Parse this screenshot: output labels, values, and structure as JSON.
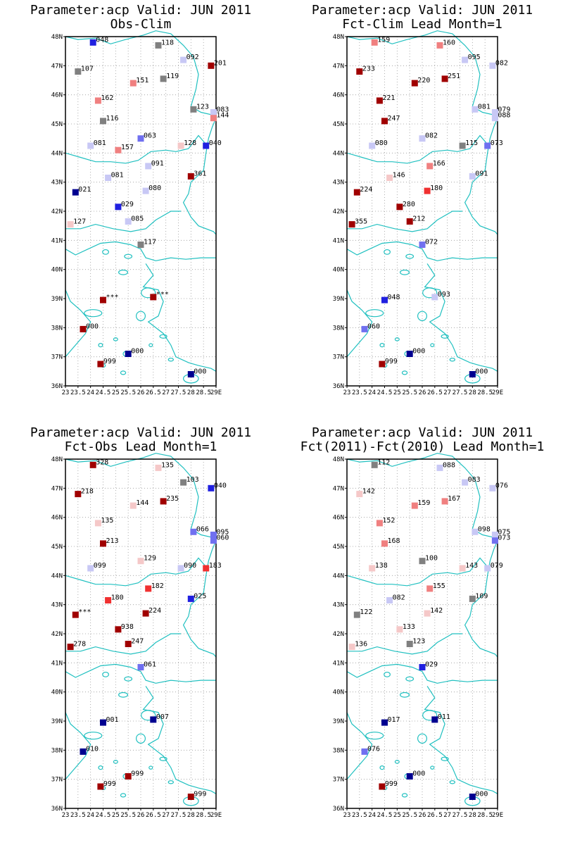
{
  "colors": {
    "coast": "#20c0c0",
    "grid": "#9a9a9a",
    "frame": "#000000",
    "dark_red": "#a00000",
    "red": "#f03030",
    "pink": "#f08080",
    "light_pink": "#f5c8c8",
    "gray": "#808080",
    "light_blue": "#c8c8f5",
    "blue_med": "#7070f0",
    "blue": "#2020e0",
    "dark_blue": "#000090"
  },
  "axes": {
    "lat_labels": [
      "36N",
      "37N",
      "38N",
      "39N",
      "40N",
      "41N",
      "42N",
      "43N",
      "44N",
      "45N",
      "46N",
      "47N",
      "48N"
    ],
    "lon_labels": [
      "23",
      "23.5",
      "24",
      "24.5",
      "25",
      "25.5",
      "26",
      "26.5",
      "27",
      "27.5",
      "28",
      "28.5",
      "29E"
    ]
  },
  "panels": [
    {
      "title_line1": "Parameter:acp Valid: JUN 2011",
      "title_line2": "Obs-Clim",
      "stations": [
        {
          "lon": 24.1,
          "lat": 47.8,
          "label": "048",
          "color": "blue"
        },
        {
          "lon": 26.7,
          "lat": 47.7,
          "label": "118",
          "color": "gray"
        },
        {
          "lon": 27.7,
          "lat": 47.2,
          "label": "092",
          "color": "light_blue"
        },
        {
          "lon": 28.8,
          "lat": 47.0,
          "label": "201",
          "color": "dark_red"
        },
        {
          "lon": 23.5,
          "lat": 46.8,
          "label": "107",
          "color": "gray"
        },
        {
          "lon": 25.7,
          "lat": 46.4,
          "label": "151",
          "color": "pink"
        },
        {
          "lon": 26.9,
          "lat": 46.55,
          "label": "119",
          "color": "gray"
        },
        {
          "lon": 24.3,
          "lat": 45.8,
          "label": "162",
          "color": "pink"
        },
        {
          "lon": 28.1,
          "lat": 45.5,
          "label": "123",
          "color": "gray"
        },
        {
          "lon": 28.9,
          "lat": 45.4,
          "label": "083",
          "color": "light_blue"
        },
        {
          "lon": 28.9,
          "lat": 45.2,
          "label": "144",
          "color": "pink"
        },
        {
          "lon": 24.5,
          "lat": 45.1,
          "label": "116",
          "color": "gray"
        },
        {
          "lon": 26.0,
          "lat": 44.5,
          "label": "063",
          "color": "blue_med"
        },
        {
          "lon": 24.0,
          "lat": 44.25,
          "label": "081",
          "color": "light_blue"
        },
        {
          "lon": 25.1,
          "lat": 44.1,
          "label": "157",
          "color": "pink"
        },
        {
          "lon": 27.6,
          "lat": 44.25,
          "label": "128",
          "color": "light_pink"
        },
        {
          "lon": 28.6,
          "lat": 44.25,
          "label": "040",
          "color": "blue"
        },
        {
          "lon": 26.3,
          "lat": 43.55,
          "label": "091",
          "color": "light_blue"
        },
        {
          "lon": 24.7,
          "lat": 43.15,
          "label": "081",
          "color": "light_blue"
        },
        {
          "lon": 28.0,
          "lat": 43.2,
          "label": "361",
          "color": "dark_red"
        },
        {
          "lon": 23.4,
          "lat": 42.65,
          "label": "021",
          "color": "dark_blue"
        },
        {
          "lon": 26.2,
          "lat": 42.7,
          "label": "080",
          "color": "light_blue"
        },
        {
          "lon": 25.1,
          "lat": 42.15,
          "label": "029",
          "color": "blue"
        },
        {
          "lon": 25.5,
          "lat": 41.65,
          "label": "085",
          "color": "light_blue"
        },
        {
          "lon": 23.2,
          "lat": 41.55,
          "label": "127",
          "color": "light_pink"
        },
        {
          "lon": 26.0,
          "lat": 40.85,
          "label": "117",
          "color": "gray"
        },
        {
          "lon": 24.5,
          "lat": 38.95,
          "label": "***",
          "color": "dark_red"
        },
        {
          "lon": 26.5,
          "lat": 39.05,
          "label": "***",
          "color": "dark_red"
        },
        {
          "lon": 23.7,
          "lat": 37.95,
          "label": "000",
          "color": "dark_red"
        },
        {
          "lon": 25.5,
          "lat": 37.1,
          "label": "000",
          "color": "dark_blue"
        },
        {
          "lon": 24.4,
          "lat": 36.75,
          "label": "999",
          "color": "dark_red"
        },
        {
          "lon": 28.0,
          "lat": 36.4,
          "label": "000",
          "color": "dark_blue"
        }
      ]
    },
    {
      "title_line1": "Parameter:acp Valid: JUN 2011",
      "title_line2": "Fct-Clim Lead Month=1",
      "stations": [
        {
          "lon": 24.1,
          "lat": 47.8,
          "label": "159",
          "color": "pink"
        },
        {
          "lon": 26.7,
          "lat": 47.7,
          "label": "160",
          "color": "pink"
        },
        {
          "lon": 27.7,
          "lat": 47.2,
          "label": "095",
          "color": "light_blue"
        },
        {
          "lon": 28.8,
          "lat": 47.0,
          "label": "082",
          "color": "light_blue"
        },
        {
          "lon": 23.5,
          "lat": 46.8,
          "label": "233",
          "color": "dark_red"
        },
        {
          "lon": 25.7,
          "lat": 46.4,
          "label": "220",
          "color": "dark_red"
        },
        {
          "lon": 26.9,
          "lat": 46.55,
          "label": "251",
          "color": "dark_red"
        },
        {
          "lon": 24.3,
          "lat": 45.8,
          "label": "221",
          "color": "dark_red"
        },
        {
          "lon": 28.1,
          "lat": 45.5,
          "label": "081",
          "color": "light_blue"
        },
        {
          "lon": 28.9,
          "lat": 45.4,
          "label": "079",
          "color": "light_blue"
        },
        {
          "lon": 28.9,
          "lat": 45.2,
          "label": "088",
          "color": "light_blue"
        },
        {
          "lon": 24.5,
          "lat": 45.1,
          "label": "247",
          "color": "dark_red"
        },
        {
          "lon": 26.0,
          "lat": 44.5,
          "label": "082",
          "color": "light_blue"
        },
        {
          "lon": 24.0,
          "lat": 44.25,
          "label": "080",
          "color": "light_blue"
        },
        {
          "lon": 27.6,
          "lat": 44.25,
          "label": "115",
          "color": "gray"
        },
        {
          "lon": 28.6,
          "lat": 44.25,
          "label": "073",
          "color": "blue_med"
        },
        {
          "lon": 26.3,
          "lat": 43.55,
          "label": "166",
          "color": "pink"
        },
        {
          "lon": 24.7,
          "lat": 43.15,
          "label": "146",
          "color": "light_pink"
        },
        {
          "lon": 28.0,
          "lat": 43.2,
          "label": "091",
          "color": "light_blue"
        },
        {
          "lon": 23.4,
          "lat": 42.65,
          "label": "224",
          "color": "dark_red"
        },
        {
          "lon": 26.2,
          "lat": 42.7,
          "label": "180",
          "color": "red"
        },
        {
          "lon": 25.1,
          "lat": 42.15,
          "label": "280",
          "color": "dark_red"
        },
        {
          "lon": 25.5,
          "lat": 41.65,
          "label": "212",
          "color": "dark_red"
        },
        {
          "lon": 23.2,
          "lat": 41.55,
          "label": "355",
          "color": "dark_red"
        },
        {
          "lon": 26.0,
          "lat": 40.85,
          "label": "072",
          "color": "blue_med"
        },
        {
          "lon": 24.5,
          "lat": 38.95,
          "label": "048",
          "color": "blue"
        },
        {
          "lon": 26.5,
          "lat": 39.05,
          "label": "093",
          "color": "light_blue"
        },
        {
          "lon": 23.7,
          "lat": 37.95,
          "label": "060",
          "color": "blue_med"
        },
        {
          "lon": 25.5,
          "lat": 37.1,
          "label": "000",
          "color": "dark_blue"
        },
        {
          "lon": 24.4,
          "lat": 36.75,
          "label": "999",
          "color": "dark_red"
        },
        {
          "lon": 28.0,
          "lat": 36.4,
          "label": "000",
          "color": "dark_blue"
        }
      ]
    },
    {
      "title_line1": "Parameter:acp Valid: JUN 2011",
      "title_line2": "Fct-Obs Lead Month=1",
      "stations": [
        {
          "lon": 24.1,
          "lat": 47.8,
          "label": "328",
          "color": "dark_red"
        },
        {
          "lon": 26.7,
          "lat": 47.7,
          "label": "135",
          "color": "light_pink"
        },
        {
          "lon": 27.7,
          "lat": 47.2,
          "label": "103",
          "color": "gray"
        },
        {
          "lon": 28.8,
          "lat": 47.0,
          "label": "040",
          "color": "blue"
        },
        {
          "lon": 23.5,
          "lat": 46.8,
          "label": "218",
          "color": "dark_red"
        },
        {
          "lon": 25.7,
          "lat": 46.4,
          "label": "144",
          "color": "light_pink"
        },
        {
          "lon": 26.9,
          "lat": 46.55,
          "label": "235",
          "color": "dark_red"
        },
        {
          "lon": 24.3,
          "lat": 45.8,
          "label": "135",
          "color": "light_pink"
        },
        {
          "lon": 28.1,
          "lat": 45.5,
          "label": "066",
          "color": "blue_med"
        },
        {
          "lon": 28.9,
          "lat": 45.4,
          "label": "095",
          "color": "blue_med"
        },
        {
          "lon": 28.9,
          "lat": 45.2,
          "label": "060",
          "color": "blue_med"
        },
        {
          "lon": 24.5,
          "lat": 45.1,
          "label": "213",
          "color": "dark_red"
        },
        {
          "lon": 26.0,
          "lat": 44.5,
          "label": "129",
          "color": "light_pink"
        },
        {
          "lon": 24.0,
          "lat": 44.25,
          "label": "099",
          "color": "light_blue"
        },
        {
          "lon": 27.6,
          "lat": 44.25,
          "label": "090",
          "color": "light_blue"
        },
        {
          "lon": 28.6,
          "lat": 44.25,
          "label": "183",
          "color": "red"
        },
        {
          "lon": 26.3,
          "lat": 43.55,
          "label": "182",
          "color": "red"
        },
        {
          "lon": 24.7,
          "lat": 43.15,
          "label": "180",
          "color": "red"
        },
        {
          "lon": 28.0,
          "lat": 43.2,
          "label": "025",
          "color": "blue"
        },
        {
          "lon": 23.4,
          "lat": 42.65,
          "label": "***",
          "color": "dark_red"
        },
        {
          "lon": 26.2,
          "lat": 42.7,
          "label": "224",
          "color": "dark_red"
        },
        {
          "lon": 25.1,
          "lat": 42.15,
          "label": "938",
          "color": "dark_red"
        },
        {
          "lon": 25.5,
          "lat": 41.65,
          "label": "247",
          "color": "dark_red"
        },
        {
          "lon": 23.2,
          "lat": 41.55,
          "label": "278",
          "color": "dark_red"
        },
        {
          "lon": 26.0,
          "lat": 40.85,
          "label": "061",
          "color": "blue_med"
        },
        {
          "lon": 24.5,
          "lat": 38.95,
          "label": "001",
          "color": "dark_blue"
        },
        {
          "lon": 26.5,
          "lat": 39.05,
          "label": "007",
          "color": "dark_blue"
        },
        {
          "lon": 23.7,
          "lat": 37.95,
          "label": "010",
          "color": "dark_blue"
        },
        {
          "lon": 25.5,
          "lat": 37.1,
          "label": "999",
          "color": "dark_red"
        },
        {
          "lon": 24.4,
          "lat": 36.75,
          "label": "999",
          "color": "dark_red"
        },
        {
          "lon": 28.0,
          "lat": 36.4,
          "label": "999",
          "color": "dark_red"
        }
      ]
    },
    {
      "title_line1": "Parameter:acp Valid: JUN 2011",
      "title_line2": "Fct(2011)-Fct(2010) Lead Month=1",
      "stations": [
        {
          "lon": 24.1,
          "lat": 47.8,
          "label": "112",
          "color": "gray"
        },
        {
          "lon": 26.7,
          "lat": 47.7,
          "label": "088",
          "color": "light_blue"
        },
        {
          "lon": 27.7,
          "lat": 47.2,
          "label": "083",
          "color": "light_blue"
        },
        {
          "lon": 28.8,
          "lat": 47.0,
          "label": "076",
          "color": "light_blue"
        },
        {
          "lon": 23.5,
          "lat": 46.8,
          "label": "142",
          "color": "light_pink"
        },
        {
          "lon": 25.7,
          "lat": 46.4,
          "label": "159",
          "color": "pink"
        },
        {
          "lon": 26.9,
          "lat": 46.55,
          "label": "167",
          "color": "pink"
        },
        {
          "lon": 24.3,
          "lat": 45.8,
          "label": "152",
          "color": "pink"
        },
        {
          "lon": 28.1,
          "lat": 45.5,
          "label": "098",
          "color": "light_blue"
        },
        {
          "lon": 28.9,
          "lat": 45.4,
          "label": "075",
          "color": "light_blue"
        },
        {
          "lon": 28.9,
          "lat": 45.2,
          "label": "073",
          "color": "blue_med"
        },
        {
          "lon": 24.5,
          "lat": 45.1,
          "label": "168",
          "color": "pink"
        },
        {
          "lon": 26.0,
          "lat": 44.5,
          "label": "100",
          "color": "gray"
        },
        {
          "lon": 24.0,
          "lat": 44.25,
          "label": "138",
          "color": "light_pink"
        },
        {
          "lon": 27.6,
          "lat": 44.25,
          "label": "143",
          "color": "light_pink"
        },
        {
          "lon": 28.6,
          "lat": 44.25,
          "label": "079",
          "color": "light_blue"
        },
        {
          "lon": 26.3,
          "lat": 43.55,
          "label": "155",
          "color": "pink"
        },
        {
          "lon": 24.7,
          "lat": 43.15,
          "label": "082",
          "color": "light_blue"
        },
        {
          "lon": 28.0,
          "lat": 43.2,
          "label": "109",
          "color": "gray"
        },
        {
          "lon": 23.4,
          "lat": 42.65,
          "label": "122",
          "color": "gray"
        },
        {
          "lon": 26.2,
          "lat": 42.7,
          "label": "142",
          "color": "light_pink"
        },
        {
          "lon": 25.1,
          "lat": 42.15,
          "label": "133",
          "color": "light_pink"
        },
        {
          "lon": 25.5,
          "lat": 41.65,
          "label": "123",
          "color": "gray"
        },
        {
          "lon": 23.2,
          "lat": 41.55,
          "label": "136",
          "color": "light_pink"
        },
        {
          "lon": 26.0,
          "lat": 40.85,
          "label": "029",
          "color": "blue"
        },
        {
          "lon": 24.5,
          "lat": 38.95,
          "label": "017",
          "color": "dark_blue"
        },
        {
          "lon": 26.5,
          "lat": 39.05,
          "label": "011",
          "color": "dark_blue"
        },
        {
          "lon": 23.7,
          "lat": 37.95,
          "label": "076",
          "color": "blue_med"
        },
        {
          "lon": 25.5,
          "lat": 37.1,
          "label": "000",
          "color": "dark_blue"
        },
        {
          "lon": 24.4,
          "lat": 36.75,
          "label": "999",
          "color": "dark_red"
        },
        {
          "lon": 28.0,
          "lat": 36.4,
          "label": "000",
          "color": "dark_blue"
        }
      ]
    }
  ]
}
